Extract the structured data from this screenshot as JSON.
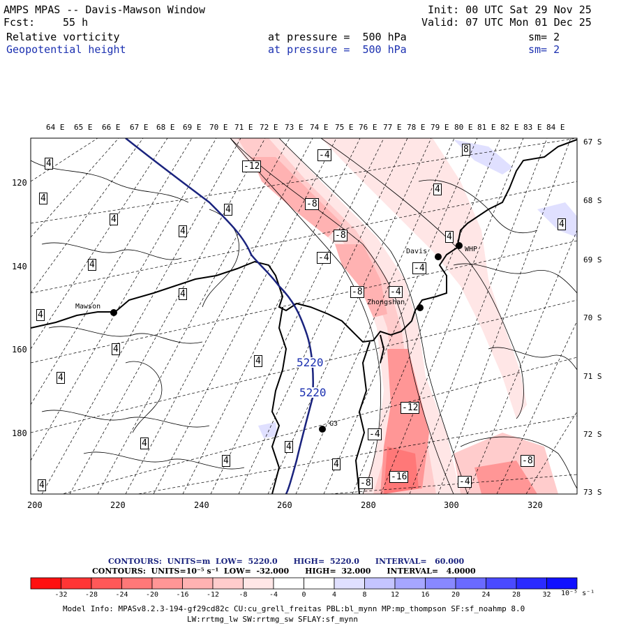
{
  "header": {
    "title": "AMPS MPAS -- Davis-Mawson Window",
    "fcst_label": "Fcst:",
    "fcst_value": "55 h",
    "init": "Init: 00 UTC Sat 29 Nov 25",
    "valid": "Valid: 07 UTC Mon 01 Dec 25",
    "field1": "Relative vorticity",
    "field2": "Geopotential height",
    "level1": "at pressure =  500 hPa",
    "level2": "at pressure =  500 hPa",
    "sm1": "sm= 2",
    "sm2": "sm= 2"
  },
  "map": {
    "lon_labels": [
      "64 E",
      "65 E",
      "66 E",
      "67 E",
      "68 E",
      "69 E",
      "70 E",
      "71 E",
      "72 E",
      "73 E",
      "74 E",
      "75 E",
      "76 E",
      "77 E",
      "78 E",
      "79 E",
      "80 E",
      "81 E",
      "82 E",
      "83 E",
      "84 E"
    ],
    "lat_labels": [
      "67 S",
      "68 S",
      "69 S",
      "70 S",
      "71 S",
      "72 S",
      "73 S"
    ],
    "x_ticks": [
      "200",
      "220",
      "240",
      "260",
      "280",
      "300",
      "320"
    ],
    "y_ticks": [
      "120",
      "140",
      "160",
      "180"
    ],
    "stations": {
      "davis": "Davis",
      "mawson": "Mawson",
      "zhongshan": "Zhongshan",
      "whp": "WHP",
      "g3": "G3"
    },
    "height_labels": [
      "5220",
      "5220"
    ],
    "vort_labels": [
      "4",
      "4",
      "4",
      "4",
      "4",
      "4",
      "4",
      "4",
      "4",
      "4",
      "4",
      "4",
      "4",
      "4",
      "4",
      "4",
      "4",
      "-12",
      "-4",
      "-8",
      "-8",
      "-4",
      "-8",
      "-4",
      "-4",
      "-12",
      "-16",
      "-8",
      "-4",
      "-8",
      "-4",
      "8",
      "4",
      "4"
    ]
  },
  "contours_info": {
    "line1": "CONTOURS:  UNITS=m  LOW=  5220.0      HIGH=  5220.0      INTERVAL=   60.000",
    "line2": "CONTOURS:  UNITS=10⁻⁵ s⁻¹  LOW=  -32.000      HIGH=  32.000      INTERVAL=   4.0000"
  },
  "colorbar": {
    "colors": [
      "#ff1010",
      "#ff3535",
      "#ff5858",
      "#ff7878",
      "#ff9696",
      "#ffb2b2",
      "#ffcccc",
      "#ffe6e6",
      "#ffffff",
      "#ffffff",
      "#e0e0ff",
      "#c4c4ff",
      "#a6a6ff",
      "#8888ff",
      "#6a6aff",
      "#4a4aff",
      "#2a2aff",
      "#1010ff"
    ],
    "labels": [
      "-32",
      "-28",
      "-24",
      "-20",
      "-16",
      "-12",
      "-8",
      "-4",
      "0",
      "4",
      "8",
      "12",
      "16",
      "20",
      "24",
      "28",
      "32"
    ],
    "units": "10⁻⁵ s⁻¹"
  },
  "model_info": {
    "line1": "Model Info: MPASv8.2.3-194-gf29cd82c CU:cu_grell_freitas PBL:bl_mynn MP:mp_thompson SF:sf_noahmp 8.0",
    "line2": "LW:rrtmg_lw SW:rrtmg_sw SFLAY:sf_mynn"
  }
}
